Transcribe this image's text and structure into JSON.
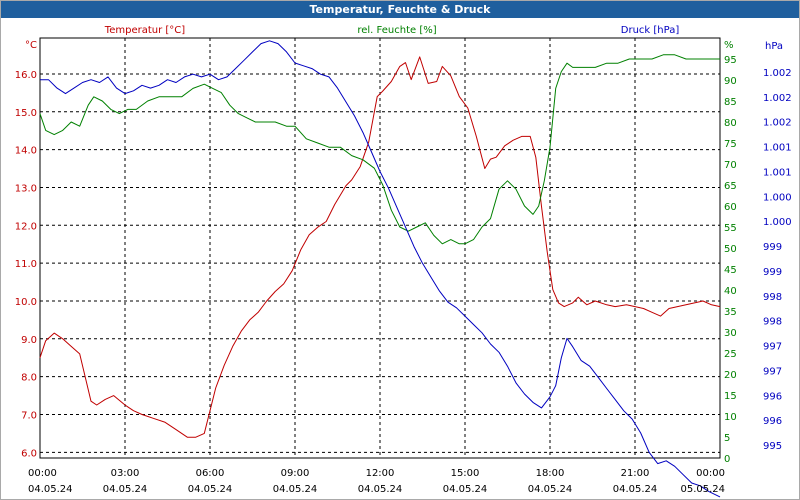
{
  "window": {
    "title": "Temperatur, Feuchte & Druck"
  },
  "colors": {
    "temp": "#c00000",
    "hum": "#008000",
    "press": "#0000c0",
    "axis_text": "#000000",
    "grid": "#000000",
    "title_bg": "#1f5f9e"
  },
  "chart_data": {
    "type": "line",
    "title": "Temperatur, Feuchte & Druck",
    "grid": true,
    "x_ticks": [
      {
        "time": "00:00",
        "date": "04.05.24"
      },
      {
        "time": "03:00",
        "date": "04.05.24"
      },
      {
        "time": "06:00",
        "date": "04.05.24"
      },
      {
        "time": "09:00",
        "date": "04.05.24"
      },
      {
        "time": "12:00",
        "date": "04.05.24"
      },
      {
        "time": "15:00",
        "date": "04.05.24"
      },
      {
        "time": "18:00",
        "date": "04.05.24"
      },
      {
        "time": "21:00",
        "date": "04.05.24"
      },
      {
        "time": "00:00",
        "date": "05.05.24"
      }
    ],
    "xlim": [
      0,
      24
    ],
    "axes": {
      "temp": {
        "label": "Temperatur [°C]",
        "unit": "°C",
        "ylim": [
          5.85,
          16.95
        ],
        "ticks": [
          "6.0",
          "7.0",
          "8.0",
          "9.0",
          "10.0",
          "11.0",
          "12.0",
          "13.0",
          "14.0",
          "15.0",
          "16.0"
        ]
      },
      "hum": {
        "label": "rel. Feuchte [%]",
        "unit": "%",
        "ylim": [
          0,
          100
        ],
        "ticks": [
          "0",
          "5",
          "10",
          "15",
          "20",
          "25",
          "30",
          "35",
          "40",
          "45",
          "50",
          "55",
          "60",
          "65",
          "70",
          "75",
          "80",
          "85",
          "90",
          "95",
          "%"
        ]
      },
      "press": {
        "label": "Druck [hPa]",
        "unit": "hPa",
        "ylim": [
          994.95,
          1002.5
        ],
        "ticks": [
          "995",
          "996",
          "996",
          "997",
          "997",
          "998",
          "998",
          "999",
          "999",
          "1.000",
          "1.000",
          "1.001",
          "1.001",
          "1.002",
          "1.002",
          "1.002",
          "hPa"
        ]
      }
    },
    "series": [
      {
        "name": "Temperatur [°C]",
        "axis": "temp",
        "color": "#c00000",
        "x": [
          0,
          0.2,
          0.5,
          0.8,
          1.1,
          1.4,
          1.8,
          2.0,
          2.3,
          2.6,
          3.0,
          3.3,
          3.6,
          4.0,
          4.4,
          4.8,
          5.2,
          5.5,
          5.8,
          6.0,
          6.2,
          6.5,
          6.8,
          7.1,
          7.4,
          7.7,
          8.0,
          8.3,
          8.6,
          8.9,
          9.2,
          9.5,
          9.8,
          10.1,
          10.4,
          10.8,
          11.0,
          11.3,
          11.6,
          11.9,
          12.1,
          12.4,
          12.7,
          12.9,
          13.1,
          13.4,
          13.7,
          14.0,
          14.2,
          14.5,
          14.8,
          15.1,
          15.4,
          15.7,
          15.9,
          16.1,
          16.4,
          16.7,
          17.0,
          17.3,
          17.5,
          17.7,
          17.9,
          18.1,
          18.3,
          18.5,
          18.8,
          19.0,
          19.3,
          19.6,
          20.0,
          20.3,
          20.7,
          21.0,
          21.3,
          21.6,
          21.9,
          22.2,
          22.5,
          22.8,
          23.1,
          23.4,
          23.7,
          24.0
        ],
        "y": [
          8.5,
          8.95,
          9.15,
          9.0,
          8.8,
          8.6,
          7.35,
          7.25,
          7.4,
          7.5,
          7.25,
          7.1,
          7.0,
          6.9,
          6.8,
          6.6,
          6.4,
          6.4,
          6.5,
          7.1,
          7.7,
          8.3,
          8.8,
          9.2,
          9.5,
          9.7,
          10.0,
          10.25,
          10.45,
          10.8,
          11.35,
          11.75,
          11.95,
          12.1,
          12.55,
          13.05,
          13.2,
          13.55,
          14.2,
          15.4,
          15.55,
          15.8,
          16.2,
          16.3,
          15.85,
          16.45,
          15.75,
          15.8,
          16.2,
          15.95,
          15.4,
          15.1,
          14.35,
          13.5,
          13.75,
          13.8,
          14.1,
          14.25,
          14.35,
          14.35,
          13.8,
          12.5,
          11.3,
          10.3,
          9.95,
          9.85,
          9.95,
          10.1,
          9.9,
          10.0,
          9.9,
          9.85,
          9.9,
          9.85,
          9.8,
          9.7,
          9.6,
          9.8,
          9.85,
          9.9,
          9.95,
          10.0,
          9.9,
          9.85
        ]
      },
      {
        "name": "rel. Feuchte [%]",
        "axis": "hum",
        "color": "#008000",
        "x": [
          0,
          0.2,
          0.5,
          0.8,
          1.1,
          1.4,
          1.7,
          1.9,
          2.2,
          2.5,
          2.8,
          3.1,
          3.4,
          3.8,
          4.2,
          4.6,
          5.0,
          5.4,
          5.8,
          6.1,
          6.4,
          6.7,
          7.0,
          7.3,
          7.6,
          7.9,
          8.3,
          8.7,
          9.0,
          9.4,
          9.8,
          10.2,
          10.6,
          11.0,
          11.4,
          11.8,
          12.1,
          12.4,
          12.7,
          13.0,
          13.3,
          13.6,
          13.9,
          14.2,
          14.5,
          14.8,
          15.0,
          15.3,
          15.6,
          15.9,
          16.2,
          16.5,
          16.8,
          17.1,
          17.4,
          17.6,
          17.8,
          18.0,
          18.2,
          18.4,
          18.6,
          18.8,
          19.0,
          19.3,
          19.6,
          20.0,
          20.4,
          20.8,
          21.2,
          21.6,
          22.0,
          22.4,
          22.8,
          23.2,
          23.6,
          24.0
        ],
        "y": [
          82,
          78,
          77,
          78,
          80,
          79,
          84,
          86,
          85,
          83,
          82,
          83,
          83,
          85,
          86,
          86,
          86,
          88,
          89,
          88,
          87,
          84,
          82,
          81,
          80,
          80,
          80,
          79,
          79,
          76,
          75,
          74,
          74,
          72,
          71,
          69,
          65,
          59,
          55,
          54,
          55,
          56,
          53,
          51,
          52,
          51,
          51,
          52,
          55,
          57,
          64,
          66,
          64,
          60,
          58,
          60,
          66,
          74,
          88,
          92,
          94,
          93,
          93,
          93,
          93,
          94,
          94,
          95,
          95,
          95,
          96,
          96,
          95,
          95,
          95,
          95
        ]
      },
      {
        "name": "Druck [hPa]",
        "axis": "press",
        "color": "#0000c0",
        "x": [
          0,
          0.3,
          0.6,
          0.9,
          1.2,
          1.5,
          1.8,
          2.1,
          2.4,
          2.7,
          3.0,
          3.3,
          3.6,
          3.9,
          4.2,
          4.5,
          4.8,
          5.1,
          5.4,
          5.7,
          6.0,
          6.3,
          6.6,
          6.9,
          7.2,
          7.5,
          7.8,
          8.1,
          8.4,
          8.7,
          9.0,
          9.3,
          9.6,
          9.9,
          10.2,
          10.5,
          10.8,
          11.1,
          11.4,
          11.7,
          12.0,
          12.3,
          12.6,
          12.9,
          13.2,
          13.5,
          13.8,
          14.1,
          14.4,
          14.7,
          15.0,
          15.3,
          15.6,
          15.9,
          16.2,
          16.5,
          16.8,
          17.1,
          17.4,
          17.7,
          18.0,
          18.2,
          18.4,
          18.6,
          18.8,
          19.1,
          19.4,
          19.7,
          20.0,
          20.3,
          20.6,
          20.9,
          21.2,
          21.5,
          21.8,
          22.1,
          22.4,
          22.7,
          23.0,
          23.3,
          23.6,
          24.0
        ],
        "y": [
          1001.75,
          1001.75,
          1001.6,
          1001.5,
          1001.6,
          1001.7,
          1001.75,
          1001.7,
          1001.8,
          1001.6,
          1001.5,
          1001.55,
          1001.65,
          1001.6,
          1001.65,
          1001.75,
          1001.7,
          1001.8,
          1001.85,
          1001.8,
          1001.85,
          1001.75,
          1001.8,
          1001.95,
          1002.1,
          1002.25,
          1002.4,
          1002.45,
          1002.4,
          1002.25,
          1002.05,
          1002.0,
          1001.95,
          1001.85,
          1001.8,
          1001.6,
          1001.35,
          1001.1,
          1000.8,
          1000.45,
          1000.1,
          999.8,
          999.45,
          999.1,
          998.75,
          998.45,
          998.2,
          997.95,
          997.75,
          997.65,
          997.5,
          997.35,
          997.2,
          997.0,
          996.85,
          996.6,
          996.3,
          996.1,
          995.95,
          995.85,
          996.05,
          996.25,
          996.75,
          997.1,
          996.95,
          996.7,
          996.6,
          996.4,
          996.2,
          996.0,
          995.8,
          995.65,
          995.4,
          995.05,
          994.85,
          994.9,
          994.8,
          994.65,
          994.5,
          994.45,
          994.35,
          994.25
        ]
      }
    ]
  }
}
